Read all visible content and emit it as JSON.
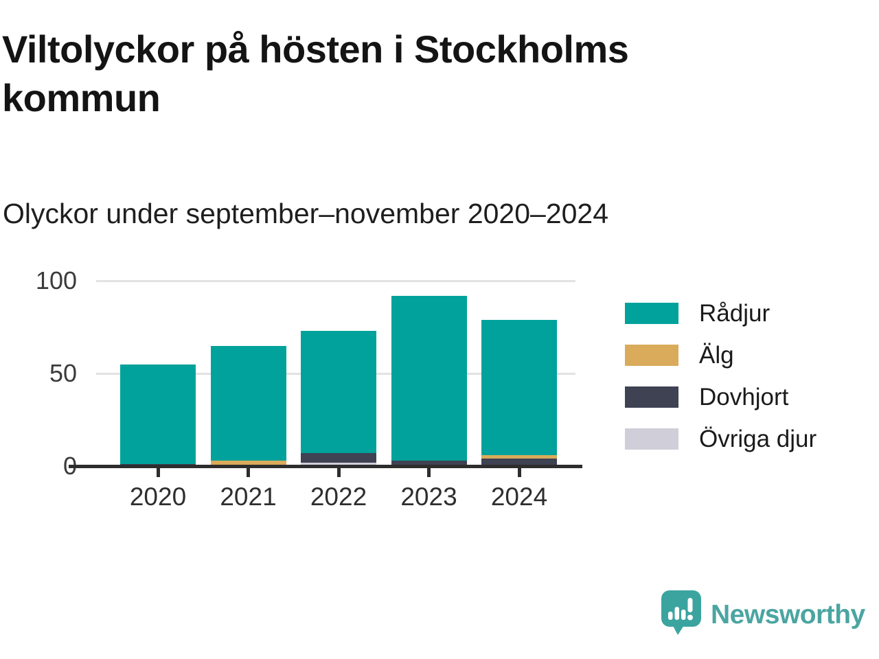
{
  "header": {
    "title_line1": "Viltolyckor på hösten i Stockholms",
    "title_line2": "kommun",
    "subtitle": "Olyckor under september–november 2020–2024"
  },
  "chart_data": {
    "type": "bar",
    "stacked": true,
    "title": "Viltolyckor på hösten i Stockholms kommun",
    "subtitle": "Olyckor under september–november 2020–2024",
    "categories": [
      "2020",
      "2021",
      "2022",
      "2023",
      "2024"
    ],
    "series": [
      {
        "name": "Rådjur",
        "color": "#00a29b",
        "values": [
          54,
          62,
          66,
          89,
          73
        ]
      },
      {
        "name": "Älg",
        "color": "#d9ab5b",
        "values": [
          0,
          3,
          0,
          0,
          2
        ]
      },
      {
        "name": "Dovhjort",
        "color": "#3e4253",
        "values": [
          1,
          0,
          5,
          3,
          4
        ]
      },
      {
        "name": "Övriga djur",
        "color": "#cfced9",
        "values": [
          0,
          0,
          2,
          0,
          0
        ]
      }
    ],
    "totals": [
      55,
      65,
      73,
      92,
      79
    ],
    "stack_order_bottom_to_top": [
      "Övriga djur",
      "Dovhjort",
      "Älg",
      "Rådjur"
    ],
    "xlabel": "",
    "ylabel": "",
    "yticks": [
      0,
      50,
      100
    ],
    "ylim": [
      0,
      100
    ],
    "grid": "horizontal",
    "legend_position": "right",
    "colors": {
      "gridline": "#e2e2e2",
      "axis": "#2d2d2d",
      "title": "#141414",
      "brand": "#4ba5a1"
    }
  },
  "footer": {
    "brand": "Newsworthy"
  }
}
